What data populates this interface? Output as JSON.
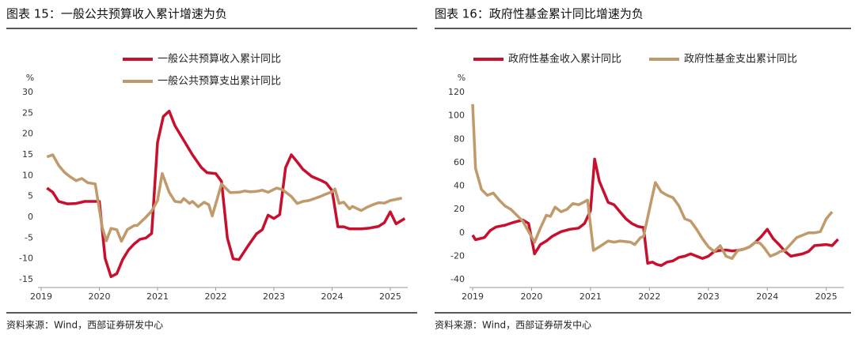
{
  "chart_data": [
    {
      "type": "line",
      "title": "图表 15：一般公共预算收入累计增速为负",
      "y_label": "%",
      "source": "资料来源：Wind，西部证券研发中心",
      "xlim": [
        2019,
        2025.3
      ],
      "xticks": [
        2019,
        2020,
        2021,
        2022,
        2023,
        2024,
        2025
      ],
      "ylim": [
        -15,
        30
      ],
      "yticks": [
        30,
        25,
        20,
        15,
        10,
        5,
        0,
        -5,
        -10,
        -15
      ],
      "grid": false,
      "legend": "top",
      "series": [
        {
          "name": "一般公共预算收入累计同比",
          "color": "#c8102e",
          "x": [
            2019.1,
            2019.2,
            2019.3,
            2019.45,
            2019.6,
            2019.75,
            2019.9,
            2020.0,
            2020.1,
            2020.2,
            2020.3,
            2020.4,
            2020.5,
            2020.6,
            2020.7,
            2020.8,
            2020.9,
            2021.0,
            2021.1,
            2021.2,
            2021.3,
            2021.45,
            2021.6,
            2021.75,
            2021.85,
            2022.0,
            2022.1,
            2022.2,
            2022.3,
            2022.4,
            2022.55,
            2022.7,
            2022.8,
            2022.9,
            2023.0,
            2023.1,
            2023.2,
            2023.3,
            2023.4,
            2023.5,
            2023.65,
            2023.8,
            2023.9,
            2024.0,
            2024.1,
            2024.2,
            2024.3,
            2024.5,
            2024.65,
            2024.8,
            2024.9,
            2025.0,
            2025.1,
            2025.25
          ],
          "values": [
            7,
            6,
            3.8,
            3.2,
            3.3,
            3.8,
            3.8,
            3.8,
            -9.9,
            -14.3,
            -13.6,
            -10.2,
            -7.9,
            -6.4,
            -5.3,
            -5,
            -3.9,
            18,
            24.2,
            25.5,
            22,
            18.5,
            15,
            12,
            10.7,
            10.5,
            8.6,
            -5,
            -10,
            -10.2,
            -7,
            -4,
            -3,
            0.5,
            -0.3,
            0.6,
            11.9,
            15,
            13.3,
            11.5,
            9.8,
            8.9,
            8.2,
            6.4,
            -2.3,
            -2.3,
            -2.8,
            -2.8,
            -2.6,
            -2.2,
            -1.3,
            1.3,
            -1.6,
            -0.3
          ]
        },
        {
          "name": "一般公共预算支出累计同比",
          "color": "#c09a6b",
          "x": [
            2019.1,
            2019.2,
            2019.3,
            2019.4,
            2019.5,
            2019.6,
            2019.7,
            2019.8,
            2019.93,
            2020.05,
            2020.12,
            2020.2,
            2020.3,
            2020.38,
            2020.48,
            2020.6,
            2020.65,
            2020.8,
            2020.9,
            2021.0,
            2021.08,
            2021.2,
            2021.3,
            2021.4,
            2021.45,
            2021.55,
            2021.6,
            2021.7,
            2021.8,
            2021.88,
            2021.94,
            2022.1,
            2022.25,
            2022.4,
            2022.5,
            2022.6,
            2022.7,
            2022.8,
            2022.9,
            2023.05,
            2023.15,
            2023.3,
            2023.4,
            2023.5,
            2023.6,
            2023.7,
            2023.8,
            2023.9,
            2024.0,
            2024.05,
            2024.12,
            2024.2,
            2024.3,
            2024.35,
            2024.5,
            2024.6,
            2024.7,
            2024.8,
            2024.9,
            2025.0,
            2025.1,
            2025.2
          ],
          "values": [
            14.5,
            15,
            12.5,
            10.8,
            9.7,
            8.8,
            9.3,
            8.3,
            8,
            -2.5,
            -5.7,
            -2.7,
            -3,
            -5.8,
            -3,
            -2,
            -2,
            0,
            1.5,
            4,
            10.5,
            6,
            3.8,
            3.6,
            4.5,
            3.3,
            3.8,
            2.5,
            3.6,
            3,
            0.3,
            8,
            5.9,
            6,
            6.3,
            6.1,
            6.2,
            6.5,
            6,
            7,
            6.6,
            5,
            3.3,
            3.8,
            4,
            4.5,
            5,
            5.6,
            6.1,
            6.8,
            3.3,
            3.6,
            2,
            2.6,
            1.6,
            2.4,
            3,
            3.5,
            3.4,
            4,
            4.3,
            4.6
          ]
        }
      ]
    },
    {
      "type": "line",
      "title": "图表 16：政府性基金累计同比增速为负",
      "y_label": "%",
      "source": "资料来源：Wind，西部证券研发中心",
      "xlim": [
        2019,
        2025.3
      ],
      "xticks": [
        2019,
        2020,
        2021,
        2022,
        2023,
        2024,
        2025
      ],
      "ylim": [
        -40,
        120
      ],
      "yticks": [
        120,
        100,
        80,
        60,
        40,
        20,
        0,
        -20,
        -40
      ],
      "grid": false,
      "legend": "top",
      "series": [
        {
          "name": "政府性基金收入累计同比",
          "color": "#c8102e",
          "x": [
            2019.0,
            2019.05,
            2019.2,
            2019.3,
            2019.4,
            2019.55,
            2019.7,
            2019.85,
            2019.95,
            2020.05,
            2020.15,
            2020.25,
            2020.35,
            2020.5,
            2020.65,
            2020.8,
            2020.9,
            2021.0,
            2021.07,
            2021.15,
            2021.3,
            2021.4,
            2021.5,
            2021.6,
            2021.7,
            2021.8,
            2021.9,
            2021.97,
            2022.05,
            2022.12,
            2022.2,
            2022.3,
            2022.4,
            2022.5,
            2022.6,
            2022.7,
            2022.8,
            2022.9,
            2023.0,
            2023.1,
            2023.2,
            2023.3,
            2023.4,
            2023.5,
            2023.6,
            2023.7,
            2023.8,
            2023.9,
            2024.0,
            2024.1,
            2024.2,
            2024.3,
            2024.4,
            2024.5,
            2024.6,
            2024.7,
            2024.8,
            2024.9,
            2025.0,
            2025.1,
            2025.2
          ],
          "values": [
            -2,
            -6,
            -4,
            2,
            5,
            6.5,
            9,
            11,
            8,
            -18,
            -10,
            -7,
            -3,
            1,
            3,
            4,
            8,
            19,
            63,
            44,
            26,
            24,
            18,
            12,
            8,
            5.5,
            4.5,
            -26,
            -25,
            -27,
            -28,
            -25,
            -24,
            -21,
            -20,
            -18,
            -20,
            -22,
            -20,
            -16,
            -15,
            -14.7,
            -15.5,
            -15,
            -14,
            -12,
            -8,
            -3,
            3,
            -5,
            -10,
            -16,
            -20,
            -19,
            -18,
            -16,
            -11,
            -10.5,
            -10,
            -11,
            -5.5
          ]
        },
        {
          "name": "政府性基金支出累计同比",
          "color": "#c09a6b",
          "x": [
            2019.0,
            2019.05,
            2019.15,
            2019.25,
            2019.35,
            2019.45,
            2019.55,
            2019.65,
            2019.75,
            2019.85,
            2020.05,
            2020.15,
            2020.25,
            2020.32,
            2020.4,
            2020.5,
            2020.6,
            2020.7,
            2020.8,
            2020.88,
            2020.95,
            2021.05,
            2021.15,
            2021.3,
            2021.4,
            2021.5,
            2021.6,
            2021.68,
            2021.75,
            2021.85,
            2021.9,
            2022.0,
            2022.1,
            2022.2,
            2022.3,
            2022.4,
            2022.5,
            2022.6,
            2022.7,
            2022.8,
            2022.9,
            2023.0,
            2023.1,
            2023.2,
            2023.3,
            2023.4,
            2023.5,
            2023.6,
            2023.7,
            2023.8,
            2023.88,
            2023.95,
            2024.05,
            2024.15,
            2024.22,
            2024.3,
            2024.5,
            2024.6,
            2024.7,
            2024.8,
            2024.9,
            2025.0,
            2025.1
          ],
          "values": [
            110,
            55,
            37,
            32,
            34,
            28,
            23,
            20,
            15,
            10,
            -8,
            4,
            15,
            14,
            22,
            18,
            20,
            25,
            24,
            26,
            28,
            -15,
            -12,
            -7,
            -8,
            -7,
            -7.5,
            -8,
            -10,
            -4,
            -3,
            20,
            43,
            35,
            32,
            30,
            23,
            12,
            10,
            3,
            -5,
            -12,
            -16,
            -11,
            -20,
            -22,
            -15,
            -14,
            -12,
            -8,
            -9,
            -13,
            -20,
            -18,
            -16,
            -15,
            -4,
            -2,
            0,
            0,
            1,
            12,
            18
          ]
        }
      ]
    }
  ]
}
